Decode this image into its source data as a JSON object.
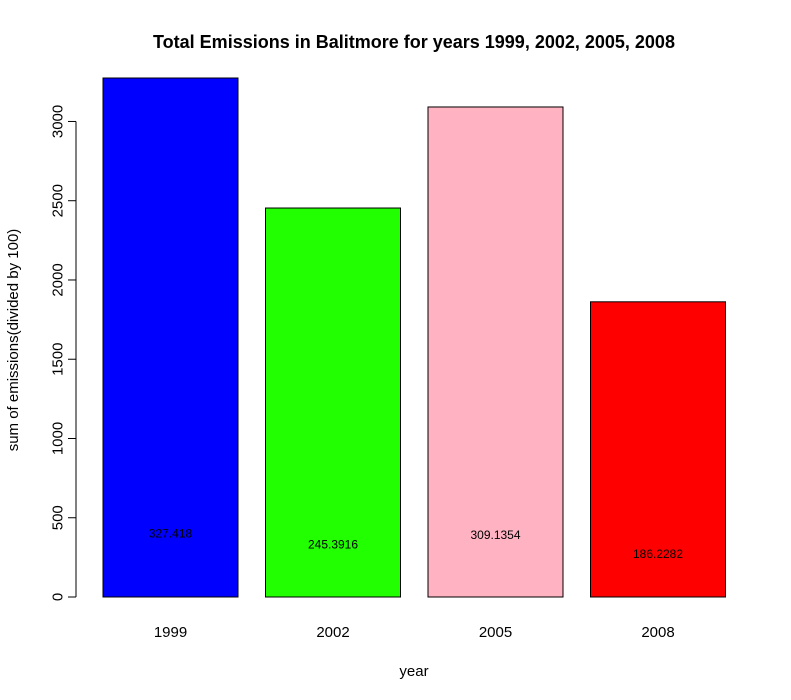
{
  "chart_data": {
    "type": "bar",
    "title": "Total Emissions in Balitmore for years 1999, 2002, 2005, 2008",
    "xlabel": "year",
    "ylabel": "sum of emissions(divided by 100)",
    "categories": [
      "1999",
      "2002",
      "2005",
      "2008"
    ],
    "values": [
      3274.18,
      2453.916,
      3091.354,
      1862.282
    ],
    "data_labels": [
      "327.418",
      "245.3916",
      "309.1354",
      "186.2282"
    ],
    "label_values": [
      400,
      330,
      390,
      270
    ],
    "colors": [
      "#0000ff",
      "#22ff00",
      "#ffb2c1",
      "#ff0000"
    ],
    "ylim": [
      0,
      3274.18
    ],
    "yticks": [
      0,
      500,
      1000,
      1500,
      2000,
      2500,
      3000
    ],
    "ytick_labels": [
      "0",
      "500",
      "1000",
      "1500",
      "2000",
      "2500",
      "3000"
    ],
    "grid": false,
    "legend": "none"
  }
}
